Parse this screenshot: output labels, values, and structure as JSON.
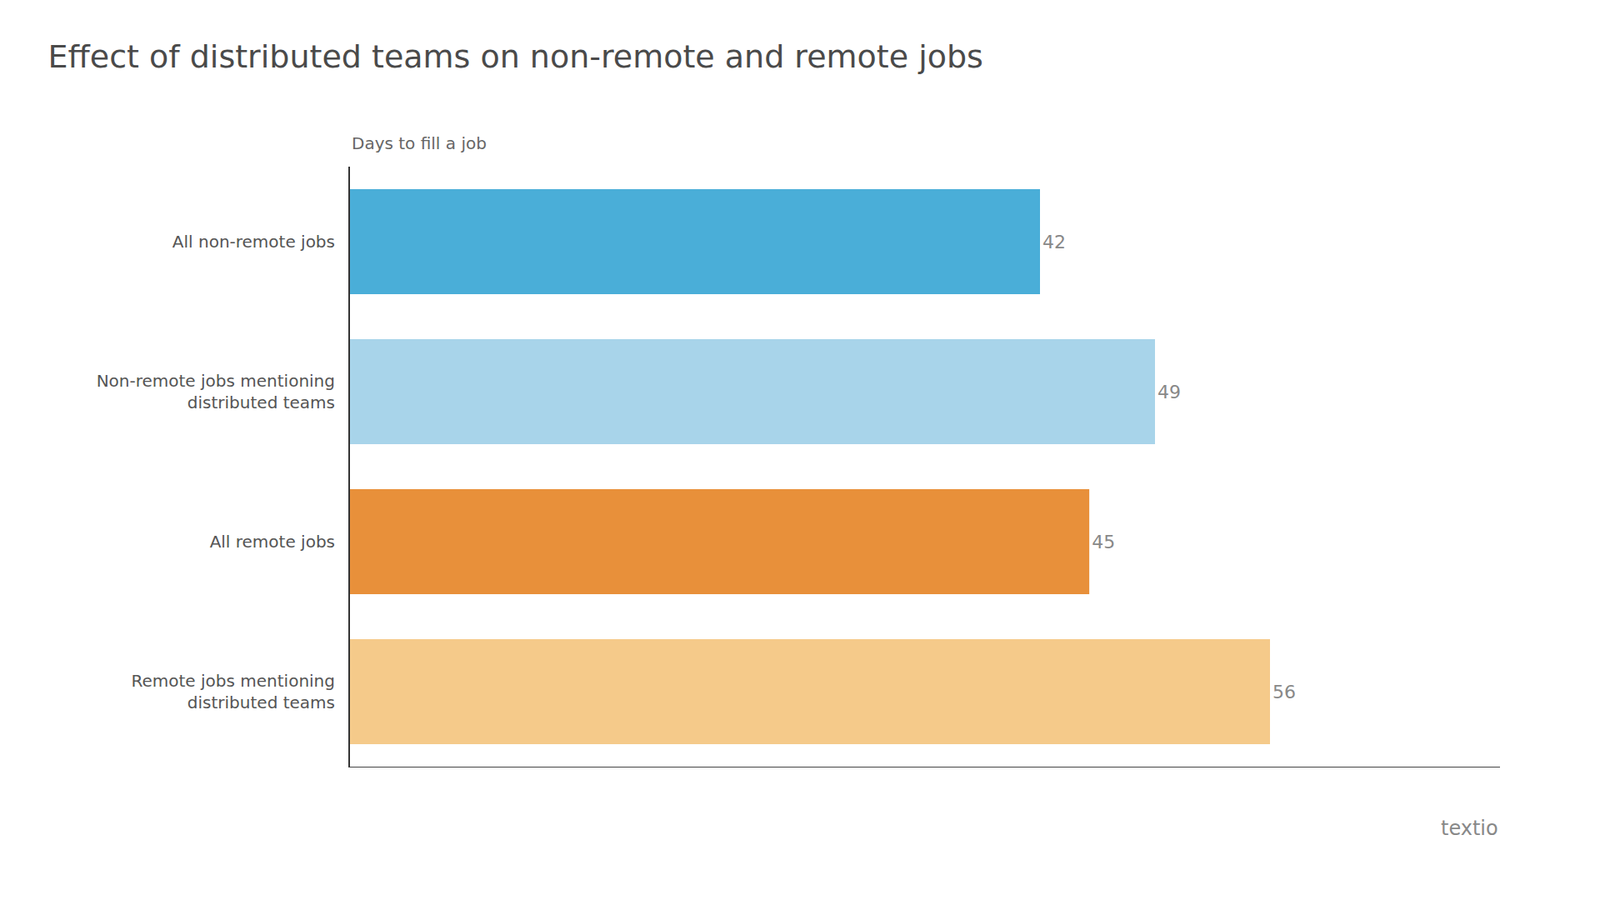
{
  "chart_data": {
    "type": "bar",
    "orientation": "horizontal",
    "title": "Effect of distributed teams on non-remote and remote jobs",
    "subtitle": "Days to fill a job",
    "categories": [
      "All non-remote jobs",
      "Non-remote jobs mentioning\ndistributed teams",
      "All remote jobs",
      "Remote jobs mentioning\ndistributed teams"
    ],
    "values": [
      42,
      49,
      45,
      56
    ],
    "colors": [
      "#4aaed8",
      "#a8d4ea",
      "#e8903a",
      "#f5ca8a"
    ],
    "xlim": [
      0,
      70
    ],
    "data_labels": true,
    "tick_labels": "y",
    "grid": false,
    "annotations": [
      "textio"
    ]
  }
}
